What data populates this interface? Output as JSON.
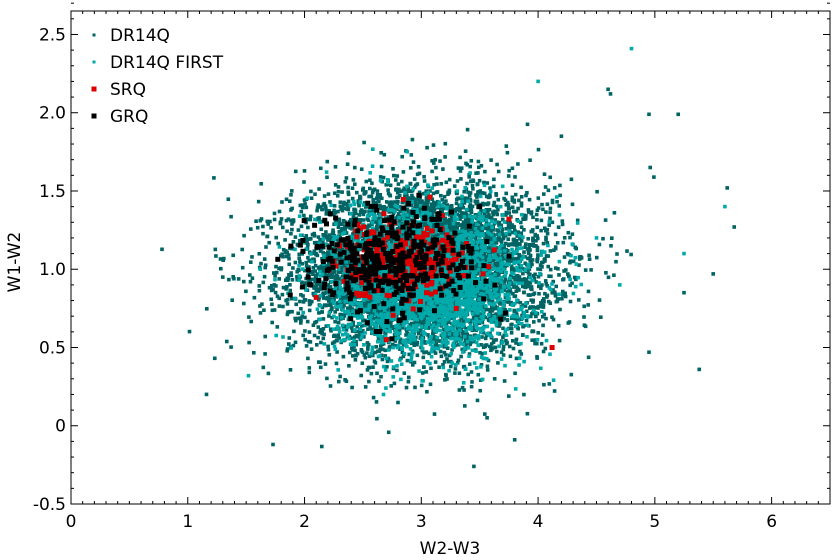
{
  "chart_data": {
    "type": "scatter",
    "title": "",
    "xlabel": "W2-W3",
    "ylabel": "W1-W2",
    "xlim": [
      0,
      6.5
    ],
    "ylim": [
      -0.5,
      2.65
    ],
    "x_ticks": [
      "0",
      "1",
      "2",
      "3",
      "4",
      "5",
      "6"
    ],
    "y_ticks": [
      "-0.5",
      "0",
      "0.5",
      "1.0",
      "1.5",
      "2.0",
      "2.5"
    ],
    "grid": false,
    "legend_position": "top-left",
    "series": [
      {
        "name": "DR14Q",
        "color": "#006464",
        "marker": "square-small",
        "distribution": {
          "x_center": 3.0,
          "y_center": 1.0,
          "x_sd": 0.55,
          "y_sd": 0.27,
          "approx_count": 6000
        },
        "outliers": [
          {
            "x": 1.16,
            "y": 0.2
          },
          {
            "x": 1.3,
            "y": 0.95
          },
          {
            "x": 1.73,
            "y": -0.12
          },
          {
            "x": 5.2,
            "y": 1.99
          },
          {
            "x": 5.38,
            "y": 0.36
          },
          {
            "x": 5.68,
            "y": 1.27
          },
          {
            "x": 5.62,
            "y": 1.52
          },
          {
            "x": 5.5,
            "y": 0.97
          },
          {
            "x": 4.96,
            "y": 1.65
          },
          {
            "x": 3.45,
            "y": -0.26
          },
          {
            "x": 3.8,
            "y": -0.09
          },
          {
            "x": 4.95,
            "y": 0.47
          },
          {
            "x": 4.6,
            "y": 2.15
          },
          {
            "x": 4.95,
            "y": 1.99
          },
          {
            "x": 4.62,
            "y": 2.12
          },
          {
            "x": 4.2,
            "y": 1.85
          },
          {
            "x": 5.25,
            "y": 0.85
          }
        ]
      },
      {
        "name": "DR14Q FIRST",
        "color": "#00aaaa",
        "marker": "square-small",
        "distribution": {
          "x_center": 3.05,
          "y_center": 0.92,
          "x_sd": 0.4,
          "y_sd": 0.22,
          "approx_count": 2600
        },
        "outliers": [
          {
            "x": 4.8,
            "y": 2.41
          },
          {
            "x": 4.0,
            "y": 2.2
          },
          {
            "x": 1.52,
            "y": 0.32
          },
          {
            "x": 5.6,
            "y": 1.4
          },
          {
            "x": 5.25,
            "y": 1.1
          },
          {
            "x": 4.5,
            "y": 1.2
          },
          {
            "x": 1.62,
            "y": 1.0
          },
          {
            "x": 4.7,
            "y": 0.9
          }
        ]
      },
      {
        "name": "SRQ",
        "color": "#dd0000",
        "marker": "square",
        "distribution": {
          "x_center": 2.85,
          "y_center": 1.07,
          "x_sd": 0.28,
          "y_sd": 0.12,
          "approx_count": 260
        },
        "outliers": [
          {
            "x": 4.12,
            "y": 0.5
          },
          {
            "x": 3.75,
            "y": 1.32
          },
          {
            "x": 2.7,
            "y": 0.55
          },
          {
            "x": 3.3,
            "y": 0.75
          },
          {
            "x": 2.1,
            "y": 0.82
          }
        ]
      },
      {
        "name": "GRQ",
        "color": "#000000",
        "marker": "square",
        "distribution": {
          "x_center": 2.75,
          "y_center": 1.05,
          "x_sd": 0.35,
          "y_sd": 0.16,
          "approx_count": 380
        },
        "outliers": [
          {
            "x": 3.72,
            "y": 0.72
          },
          {
            "x": 3.68,
            "y": 0.68
          },
          {
            "x": 2.25,
            "y": 0.85
          },
          {
            "x": 2.05,
            "y": 0.9
          },
          {
            "x": 3.5,
            "y": 1.4
          }
        ]
      }
    ]
  }
}
